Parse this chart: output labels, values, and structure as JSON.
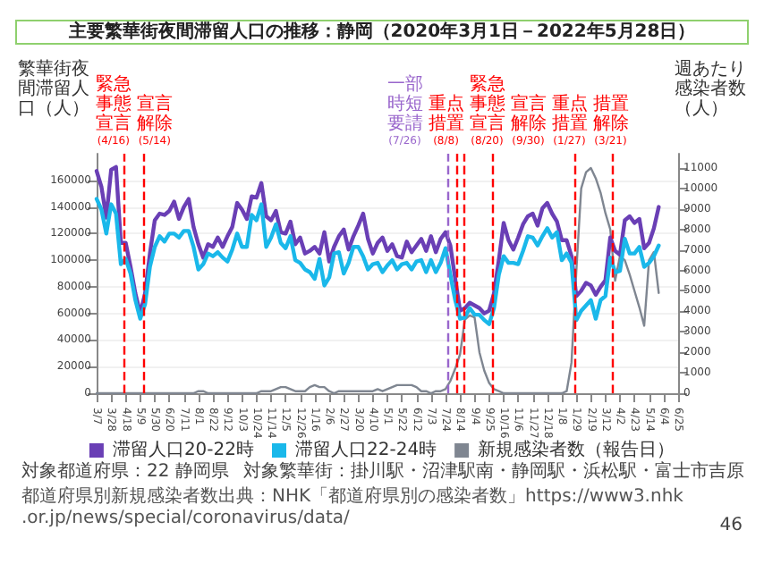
{
  "chart_data": {
    "type": "line",
    "title": "主要繁華街夜間滞留人口の推移：静岡（2020年3月1日－2022年5月28日）",
    "ylabel": "繁華街夜間滞留人口（人）",
    "y2label": "週あたり感染者数（人）",
    "x": [
      "2020-03-07",
      "2020-03-14",
      "2020-03-21",
      "2020-03-28",
      "2020-04-04",
      "2020-04-11",
      "2020-04-18",
      "2020-04-25",
      "2020-05-02",
      "2020-05-09",
      "2020-05-16",
      "2020-05-23",
      "2020-05-30",
      "2020-06-06",
      "2020-06-13",
      "2020-06-20",
      "2020-06-27",
      "2020-07-04",
      "2020-07-11",
      "2020-07-18",
      "2020-07-25",
      "2020-08-01",
      "2020-08-08",
      "2020-08-15",
      "2020-08-22",
      "2020-08-29",
      "2020-09-05",
      "2020-09-12",
      "2020-09-19",
      "2020-09-26",
      "2020-10-03",
      "2020-10-10",
      "2020-10-17",
      "2020-10-24",
      "2020-10-31",
      "2020-11-07",
      "2020-11-14",
      "2020-11-21",
      "2020-11-28",
      "2020-12-05",
      "2020-12-12",
      "2020-12-19",
      "2020-12-26",
      "2021-01-02",
      "2021-01-09",
      "2021-01-16",
      "2021-01-23",
      "2021-01-30",
      "2021-02-06",
      "2021-02-13",
      "2021-02-20",
      "2021-02-27",
      "2021-03-06",
      "2021-03-13",
      "2021-03-20",
      "2021-03-27",
      "2021-04-03",
      "2021-04-10",
      "2021-04-17",
      "2021-04-24",
      "2021-05-01",
      "2021-05-08",
      "2021-05-15",
      "2021-05-22",
      "2021-05-29",
      "2021-06-05",
      "2021-06-12",
      "2021-06-19",
      "2021-06-26",
      "2021-07-03",
      "2021-07-10",
      "2021-07-17",
      "2021-07-24",
      "2021-07-31",
      "2021-08-07",
      "2021-08-14",
      "2021-08-21",
      "2021-08-28",
      "2021-09-04",
      "2021-09-11",
      "2021-09-18",
      "2021-09-25",
      "2021-10-02",
      "2021-10-09",
      "2021-10-16",
      "2021-10-23",
      "2021-10-30",
      "2021-11-06",
      "2021-11-13",
      "2021-11-20",
      "2021-11-27",
      "2021-12-04",
      "2021-12-11",
      "2021-12-18",
      "2021-12-25",
      "2022-01-01",
      "2022-01-08",
      "2022-01-15",
      "2022-01-22",
      "2022-01-29",
      "2022-02-05",
      "2022-02-12",
      "2022-02-19",
      "2022-02-26",
      "2022-03-05",
      "2022-03-12",
      "2022-03-19",
      "2022-03-26",
      "2022-04-02",
      "2022-04-09",
      "2022-04-16",
      "2022-04-23",
      "2022-04-30",
      "2022-05-07",
      "2022-05-14",
      "2022-05-21",
      "2022-05-28"
    ],
    "series": [
      {
        "name": "滞留人口20-22時",
        "color": "#6a3fb5",
        "values": [
          167000,
          155000,
          132000,
          168000,
          170000,
          113000,
          113000,
          95000,
          75000,
          60000,
          75000,
          105000,
          130000,
          135000,
          134000,
          137000,
          144000,
          131000,
          140000,
          146000,
          125000,
          112000,
          102000,
          112000,
          110000,
          117000,
          110000,
          118000,
          125000,
          143000,
          138000,
          131000,
          148000,
          147000,
          158000,
          133000,
          130000,
          137000,
          121000,
          120000,
          129000,
          112000,
          117000,
          105000,
          107000,
          110000,
          105000,
          121000,
          99000,
          110000,
          118000,
          123000,
          108000,
          118000,
          126000,
          135000,
          116000,
          105000,
          113000,
          117000,
          107000,
          112000,
          103000,
          102000,
          114000,
          106000,
          111000,
          116000,
          107000,
          118000,
          106000,
          116000,
          121000,
          111000,
          86000,
          62000,
          64000,
          68000,
          66000,
          64000,
          60000,
          62000,
          75000,
          100000,
          128000,
          115000,
          108000,
          117000,
          127000,
          133000,
          135000,
          126000,
          139000,
          143000,
          135000,
          129000,
          115000,
          115000,
          103000,
          73000,
          77000,
          83000,
          81000,
          74000,
          80000,
          85000,
          117000,
          107000,
          104000,
          130000,
          133000,
          128000,
          131000,
          109000,
          113000,
          124000,
          140000
        ]
      },
      {
        "name": "滞留人口22-24時",
        "color": "#1ab8ea",
        "values": [
          146000,
          138000,
          120000,
          142000,
          135000,
          97000,
          101000,
          90000,
          70000,
          56000,
          67000,
          95000,
          110000,
          118000,
          114000,
          120000,
          120000,
          117000,
          122000,
          122000,
          110000,
          93000,
          97000,
          105000,
          103000,
          106000,
          102000,
          99000,
          108000,
          120000,
          110000,
          110000,
          134000,
          130000,
          142000,
          110000,
          117000,
          127000,
          113000,
          109000,
          118000,
          100000,
          98000,
          93000,
          91000,
          86000,
          101000,
          81000,
          87000,
          105000,
          106000,
          90000,
          98000,
          110000,
          110000,
          103000,
          93000,
          97000,
          98000,
          91000,
          96000,
          100000,
          93000,
          97000,
          98000,
          93000,
          99000,
          100000,
          91000,
          100000,
          91000,
          98000,
          109000,
          89000,
          70000,
          56000,
          57000,
          64000,
          59000,
          59000,
          55000,
          52000,
          64000,
          89000,
          103000,
          98000,
          98000,
          97000,
          107000,
          118000,
          117000,
          111000,
          118000,
          124000,
          117000,
          121000,
          100000,
          105000,
          98000,
          55000,
          62000,
          66000,
          70000,
          56000,
          70000,
          73000,
          102000,
          91000,
          92000,
          116000,
          105000,
          105000,
          110000,
          95000,
          98000,
          103000,
          111000
        ]
      },
      {
        "name": "新規感染者数（報告日）",
        "color": "#7f8691",
        "axis": "y2",
        "values": [
          0,
          0,
          0,
          0,
          0,
          0,
          0,
          0,
          0,
          0,
          0,
          0,
          0,
          0,
          0,
          0,
          0,
          0,
          0,
          0,
          0,
          100,
          100,
          0,
          0,
          0,
          0,
          0,
          0,
          0,
          0,
          0,
          0,
          0,
          100,
          100,
          100,
          200,
          300,
          300,
          200,
          100,
          100,
          100,
          300,
          400,
          300,
          300,
          100,
          0,
          100,
          100,
          100,
          100,
          100,
          100,
          100,
          100,
          200,
          100,
          200,
          300,
          400,
          400,
          400,
          400,
          300,
          100,
          100,
          0,
          100,
          100,
          200,
          600,
          1200,
          1900,
          3600,
          3800,
          3700,
          2000,
          1100,
          500,
          200,
          100,
          0,
          0,
          0,
          0,
          0,
          0,
          0,
          0,
          0,
          0,
          0,
          0,
          0,
          100,
          1500,
          6000,
          10000,
          10800,
          11000,
          10500,
          9800,
          8800,
          8000,
          5500,
          6700,
          6500,
          5800,
          5000,
          4200,
          3300,
          6500,
          6900,
          4900
        ]
      }
    ],
    "xlim": [
      "2020-03-07",
      "2022-06-25"
    ],
    "xticks": [
      {
        "value": "2020-03-07",
        "label": "3/7"
      },
      {
        "value": "2020-03-28",
        "label": "3/28"
      },
      {
        "value": "2020-04-18",
        "label": "4/18"
      },
      {
        "value": "2020-05-09",
        "label": "5/9"
      },
      {
        "value": "2020-05-30",
        "label": "5/30"
      },
      {
        "value": "2020-06-20",
        "label": "6/20"
      },
      {
        "value": "2020-07-11",
        "label": "7/11"
      },
      {
        "value": "2020-08-01",
        "label": "8/1"
      },
      {
        "value": "2020-08-22",
        "label": "8/22"
      },
      {
        "value": "2020-09-12",
        "label": "9/12"
      },
      {
        "value": "2020-10-03",
        "label": "10/3"
      },
      {
        "value": "2020-10-24",
        "label": "10/24"
      },
      {
        "value": "2020-11-14",
        "label": "11/14"
      },
      {
        "value": "2020-12-05",
        "label": "12/5"
      },
      {
        "value": "2020-12-26",
        "label": "12/26"
      },
      {
        "value": "2021-01-16",
        "label": "1/16"
      },
      {
        "value": "2021-02-06",
        "label": "2/6"
      },
      {
        "value": "2021-02-27",
        "label": "2/27"
      },
      {
        "value": "2021-03-20",
        "label": "3/20"
      },
      {
        "value": "2021-04-10",
        "label": "4/10"
      },
      {
        "value": "2021-05-01",
        "label": "5/1"
      },
      {
        "value": "2021-05-22",
        "label": "5/22"
      },
      {
        "value": "2021-06-12",
        "label": "6/12"
      },
      {
        "value": "2021-07-03",
        "label": "7/3"
      },
      {
        "value": "2021-07-24",
        "label": "7/24"
      },
      {
        "value": "2021-08-14",
        "label": "8/14"
      },
      {
        "value": "2021-09-04",
        "label": "9/4"
      },
      {
        "value": "2021-09-25",
        "label": "9/25"
      },
      {
        "value": "2021-10-16",
        "label": "10/16"
      },
      {
        "value": "2021-11-06",
        "label": "11/6"
      },
      {
        "value": "2021-11-27",
        "label": "11/27"
      },
      {
        "value": "2021-12-18",
        "label": "12/18"
      },
      {
        "value": "2022-01-08",
        "label": "1/8"
      },
      {
        "value": "2022-01-29",
        "label": "1/29"
      },
      {
        "value": "2022-02-19",
        "label": "2/19"
      },
      {
        "value": "2022-03-12",
        "label": "3/12"
      },
      {
        "value": "2022-04-02",
        "label": "4/2"
      },
      {
        "value": "2022-04-23",
        "label": "4/23"
      },
      {
        "value": "2022-05-14",
        "label": "5/14"
      },
      {
        "value": "2022-06-04",
        "label": "6/4"
      },
      {
        "value": "2022-06-25",
        "label": "6/25"
      }
    ],
    "ylim": [
      0,
      180000
    ],
    "yticks": [
      0,
      20000,
      40000,
      60000,
      80000,
      100000,
      120000,
      140000,
      160000
    ],
    "y2lim": [
      0,
      11700
    ],
    "y2ticks": [
      0,
      1000,
      2000,
      3000,
      4000,
      5000,
      6000,
      7000,
      8000,
      9000,
      10000,
      11000
    ],
    "ref_lines": [
      {
        "axis": "x",
        "value": "2020-04-16",
        "label": "緊急事態宣言(4/16)",
        "color": "#ff0000",
        "line_style": "dashed"
      },
      {
        "axis": "x",
        "value": "2020-05-14",
        "label": "宣言解除(5/14)",
        "color": "#ff0000",
        "line_style": "dashed"
      },
      {
        "axis": "x",
        "value": "2021-07-26",
        "label": "一部時短要請(7/26)",
        "color": "#9966cc",
        "line_style": "dashed"
      },
      {
        "axis": "x",
        "value": "2021-08-08",
        "label": "重点措置(8/8)",
        "color": "#ff0000",
        "line_style": "dashed"
      },
      {
        "axis": "x",
        "value": "2021-08-20",
        "label": "緊急事態宣言(8/20)",
        "color": "#ff0000",
        "line_style": "dashed"
      },
      {
        "axis": "x",
        "value": "2021-09-30",
        "label": "宣言解除(9/30)",
        "color": "#ff0000",
        "line_style": "dashed"
      },
      {
        "axis": "x",
        "value": "2022-01-27",
        "label": "重点措置(1/27)",
        "color": "#ff0000",
        "line_style": "dashed"
      },
      {
        "axis": "x",
        "value": "2022-03-21",
        "label": "措置解除(3/21)",
        "color": "#ff0000",
        "line_style": "dashed"
      }
    ],
    "annotations": [
      "対象都道府県：22 静岡県",
      "対象繁華街：掛川駅・沼津駅南・静岡駅・浜松駅・富士市吉原",
      "都道府県別新規感染者数出典：NHK「都道府県別の感染者数」https://www3.nhk.or.jp/news/special/coronavirus/data/",
      "46"
    ],
    "legend": "bottom",
    "grid": "y",
    "marker": "none",
    "line_style": "solid"
  }
}
